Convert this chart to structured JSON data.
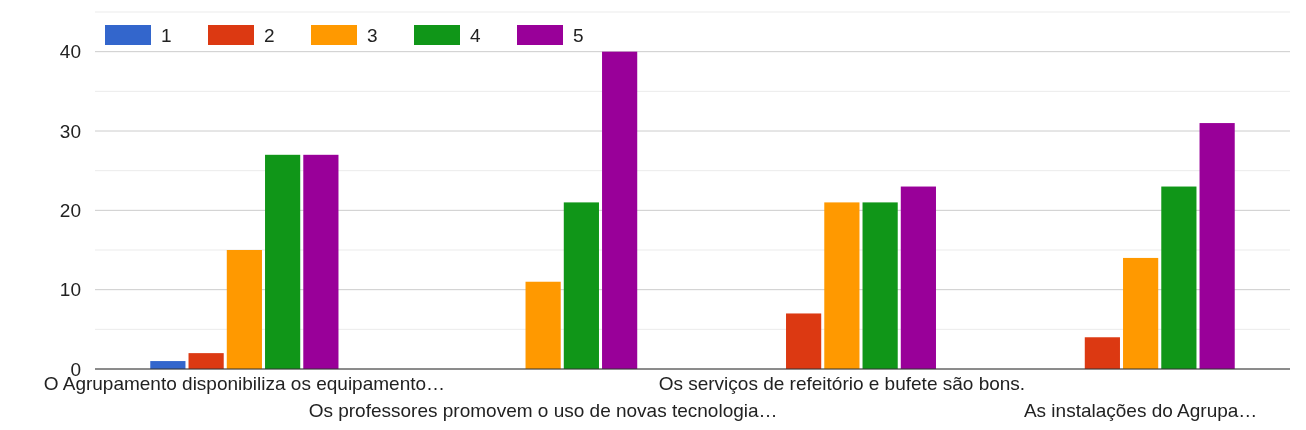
{
  "chart_data": {
    "type": "bar",
    "categories": [
      "O Agrupamento disponibiliza os equipamento…",
      "Os professores promovem o uso de novas tecnologia…",
      "Os serviços de refeitório e bufete são bons.",
      "As instalações do Agrupa…"
    ],
    "series": [
      {
        "name": "1",
        "color": "#3366cc",
        "values": [
          1,
          0,
          0,
          0
        ]
      },
      {
        "name": "2",
        "color": "#dc3912",
        "values": [
          2,
          0,
          7,
          4
        ]
      },
      {
        "name": "3",
        "color": "#ff9900",
        "values": [
          15,
          11,
          21,
          14
        ]
      },
      {
        "name": "4",
        "color": "#109618",
        "values": [
          27,
          21,
          21,
          23
        ]
      },
      {
        "name": "5",
        "color": "#990099",
        "values": [
          27,
          40,
          23,
          31
        ]
      }
    ],
    "ylim": [
      0,
      45
    ],
    "yticks": [
      0,
      {
        "value": 5,
        "label": null
      },
      10,
      {
        "value": 15,
        "label": null
      },
      20,
      {
        "value": 25,
        "label": null
      },
      30,
      {
        "value": 35,
        "label": null
      },
      40,
      {
        "value": 45,
        "label": null
      }
    ],
    "grid": true,
    "legend": "top left"
  }
}
